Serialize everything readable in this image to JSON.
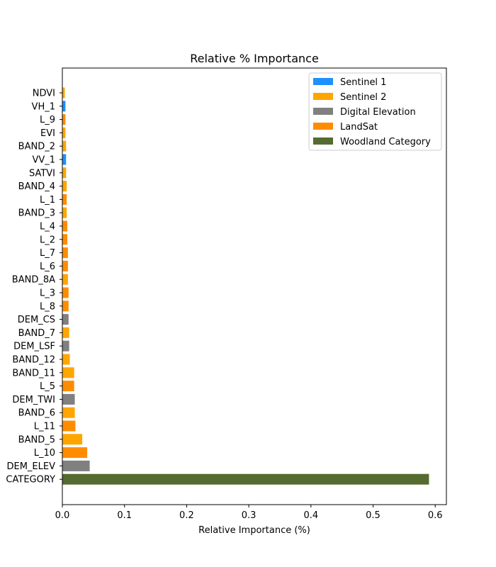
{
  "chart_data": {
    "type": "bar",
    "orientation": "horizontal",
    "title": "Relative % Importance",
    "xlabel": "Relative Importance (%)",
    "ylabel": "",
    "xlim": [
      0,
      0.62
    ],
    "xticks": [
      "0.0",
      "0.1",
      "0.2",
      "0.3",
      "0.4",
      "0.5",
      "0.6"
    ],
    "grid": false,
    "legend_position": "top-right",
    "groups": [
      {
        "name": "Sentinel 1",
        "color": "#1e90ff"
      },
      {
        "name": "Sentinel 2",
        "color": "#ffa500"
      },
      {
        "name": "Digital Elevation",
        "color": "#808080"
      },
      {
        "name": "LandSat",
        "color": "#ff8c00"
      },
      {
        "name": "Woodland Category",
        "color": "#556b2f"
      }
    ],
    "bars": [
      {
        "label": "NDVI",
        "value": 0.004,
        "group": 1
      },
      {
        "label": "VH_1",
        "value": 0.005,
        "group": 0
      },
      {
        "label": "L_9",
        "value": 0.005,
        "group": 3
      },
      {
        "label": "EVI",
        "value": 0.005,
        "group": 1
      },
      {
        "label": "BAND_2",
        "value": 0.006,
        "group": 1
      },
      {
        "label": "VV_1",
        "value": 0.006,
        "group": 0
      },
      {
        "label": "SATVI",
        "value": 0.006,
        "group": 1
      },
      {
        "label": "BAND_4",
        "value": 0.007,
        "group": 1
      },
      {
        "label": "L_1",
        "value": 0.007,
        "group": 3
      },
      {
        "label": "BAND_3",
        "value": 0.007,
        "group": 1
      },
      {
        "label": "L_4",
        "value": 0.008,
        "group": 3
      },
      {
        "label": "L_2",
        "value": 0.008,
        "group": 3
      },
      {
        "label": "L_7",
        "value": 0.009,
        "group": 3
      },
      {
        "label": "L_6",
        "value": 0.009,
        "group": 3
      },
      {
        "label": "BAND_8A",
        "value": 0.009,
        "group": 1
      },
      {
        "label": "L_3",
        "value": 0.01,
        "group": 3
      },
      {
        "label": "L_8",
        "value": 0.01,
        "group": 3
      },
      {
        "label": "DEM_CS",
        "value": 0.01,
        "group": 2
      },
      {
        "label": "BAND_7",
        "value": 0.011,
        "group": 1
      },
      {
        "label": "DEM_LSF",
        "value": 0.011,
        "group": 2
      },
      {
        "label": "BAND_12",
        "value": 0.012,
        "group": 1
      },
      {
        "label": "BAND_11",
        "value": 0.019,
        "group": 1
      },
      {
        "label": "L_5",
        "value": 0.019,
        "group": 3
      },
      {
        "label": "DEM_TWI",
        "value": 0.02,
        "group": 2
      },
      {
        "label": "BAND_6",
        "value": 0.02,
        "group": 1
      },
      {
        "label": "L_11",
        "value": 0.021,
        "group": 3
      },
      {
        "label": "BAND_5",
        "value": 0.032,
        "group": 1
      },
      {
        "label": "L_10",
        "value": 0.04,
        "group": 3
      },
      {
        "label": "DEM_ELEV",
        "value": 0.044,
        "group": 2
      },
      {
        "label": "CATEGORY",
        "value": 0.59,
        "group": 4
      }
    ]
  }
}
